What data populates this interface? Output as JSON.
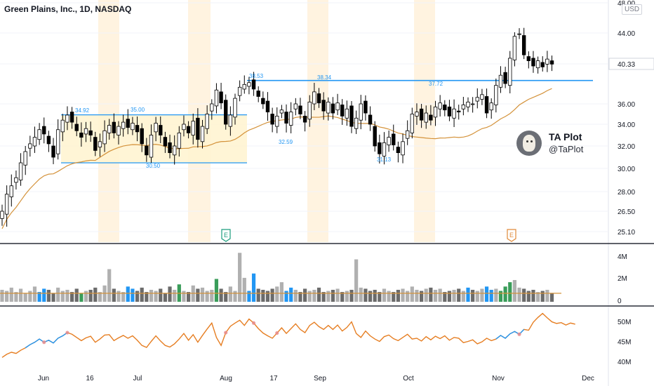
{
  "chart_data": {
    "type": "candlestick",
    "title": "Green Plains, Inc., 1D, NASDAQ",
    "currency": "USD",
    "y_ticks": [
      "48.00",
      "44.00",
      "40.33",
      "36.00",
      "34.00",
      "32.00",
      "30.00",
      "28.00",
      "26.50",
      "25.10"
    ],
    "y_tick_values": [
      48,
      44,
      40.33,
      36,
      34,
      32,
      30,
      28,
      26.5,
      25.1
    ],
    "last_price": "40.33",
    "x_ticks": [
      "Jun",
      "16",
      "Jul",
      "Aug",
      "17",
      "Sep",
      "Oct",
      "Nov",
      "Dec"
    ],
    "candles_close": [
      26.5,
      27.8,
      28.5,
      29.2,
      30.5,
      31.5,
      32.2,
      32.8,
      33.5,
      33.1,
      32.2,
      31.0,
      33.5,
      34.4,
      34.9,
      34.2,
      33.4,
      32.8,
      33.6,
      33.0,
      31.6,
      32.4,
      33.4,
      33.9,
      33.2,
      33.8,
      34.2,
      33.7,
      34.1,
      33.3,
      32.2,
      31.2,
      33.0,
      34.1,
      33.0,
      32.0,
      31.4,
      32.0,
      33.2,
      34.0,
      33.2,
      34.3,
      32.6,
      33.8,
      35.0,
      36.0,
      37.5,
      36.1,
      34.0,
      34.9,
      36.6,
      37.8,
      38.1,
      38.3,
      37.6,
      36.8,
      36.0,
      35.2,
      34.0,
      34.8,
      35.4,
      34.1,
      35.2,
      36.0,
      35.0,
      34.2,
      36.2,
      37.3,
      36.1,
      35.3,
      36.2,
      35.1,
      36.1,
      34.8,
      35.5,
      33.8,
      34.6,
      36.0,
      35.1,
      34.0,
      32.0,
      31.3,
      32.3,
      32.8,
      32.1,
      31.4,
      32.4,
      33.4,
      35.0,
      35.2,
      34.4,
      35.1,
      34.4,
      35.7,
      36.1,
      35.4,
      34.8,
      35.5,
      35.2,
      35.9,
      36.2,
      36.0,
      36.7,
      37.0,
      35.1,
      36.1,
      38.0,
      39.1,
      38.2,
      41.0,
      43.6,
      43.9,
      41.4,
      40.7,
      40.1,
      40.7,
      40.0,
      40.9,
      40.3
    ],
    "volume_ticks": [
      "4M",
      "2M",
      "0"
    ],
    "volume_values": [
      1.1,
      1.0,
      1.3,
      0.9,
      1.2,
      0.8,
      1.0,
      1.4,
      0.9,
      1.2,
      1.1,
      0.8,
      1.3,
      1.0,
      1.1,
      0.9,
      1.2,
      0.8,
      1.0,
      1.1,
      1.3,
      0.9,
      1.5,
      3.0,
      1.2,
      1.0,
      0.9,
      1.4,
      1.2,
      1.0,
      1.3,
      0.9,
      1.1,
      1.0,
      1.2,
      0.8,
      1.4,
      1.1,
      1.6,
      1.0,
      0.9,
      1.5,
      1.2,
      1.3,
      1.0,
      1.1,
      2.1,
      1.2,
      0.9,
      1.4,
      1.0,
      4.5,
      2.2,
      1.0,
      2.6,
      1.2,
      1.1,
      1.0,
      1.2,
      1.4,
      1.8,
      1.0,
      1.3,
      1.1,
      0.9,
      1.2,
      1.0,
      1.1,
      1.3,
      0.9,
      1.0,
      1.1,
      1.2,
      0.9,
      1.0,
      1.1,
      3.9,
      1.3,
      1.2,
      1.0,
      1.1,
      0.9,
      1.2,
      1.0,
      0.9,
      1.1,
      1.2,
      1.0,
      1.4,
      1.1,
      1.0,
      1.2,
      1.3,
      1.1,
      1.2,
      0.9,
      1.0,
      1.1,
      1.2,
      1.0,
      1.3,
      1.1,
      1.0,
      1.2,
      1.4,
      1.1,
      1.2,
      1.0,
      1.4,
      1.8,
      2.0,
      1.3,
      1.2,
      1.0,
      1.1,
      0.9,
      1.0,
      1.1,
      0.8
    ],
    "volume_ma": 1.3,
    "rs_ticks": [
      "50M",
      "45M",
      "40M"
    ],
    "rs_tick_values": [
      50,
      45,
      40
    ],
    "rs_values": [
      41.0,
      41.8,
      42.3,
      42.0,
      42.8,
      43.4,
      44.2,
      44.8,
      45.6,
      44.8,
      45.3,
      44.6,
      45.8,
      46.4,
      47.2,
      46.8,
      46.0,
      45.2,
      45.9,
      46.3,
      44.8,
      45.6,
      46.6,
      46.7,
      45.2,
      45.9,
      46.5,
      45.8,
      46.4,
      45.3,
      44.0,
      43.5,
      45.0,
      46.4,
      45.1,
      44.0,
      43.6,
      44.4,
      45.6,
      47.0,
      45.3,
      46.7,
      44.8,
      46.5,
      48.1,
      49.6,
      46.0,
      44.0,
      47.2,
      48.8,
      49.6,
      50.3,
      49.0,
      50.6,
      49.6,
      48.2,
      47.1,
      46.4,
      45.8,
      47.1,
      48.4,
      47.0,
      48.2,
      49.4,
      48.0,
      47.2,
      49.0,
      49.8,
      48.7,
      48.0,
      49.0,
      48.0,
      49.1,
      47.6,
      48.5,
      49.9,
      47.0,
      46.0,
      47.6,
      46.4,
      45.6,
      45.0,
      46.2,
      46.6,
      45.7,
      45.2,
      46.0,
      46.8,
      45.6,
      45.8,
      45.1,
      46.2,
      45.4,
      46.3,
      45.7,
      46.4,
      45.3,
      46.0,
      45.8,
      44.7,
      45.0,
      45.4,
      44.4,
      44.9,
      45.8,
      45.2,
      45.6,
      46.5,
      45.8,
      46.9,
      47.5,
      46.8,
      48.0,
      47.8,
      49.8,
      51.0,
      52.0,
      50.9,
      49.9,
      49.5,
      49.7,
      49.1,
      49.6,
      49.3
    ],
    "annotations": {
      "range1_labels": [
        "34.92",
        "35.00",
        "30.50"
      ],
      "range1_top": 34.92,
      "range1_bottom": 30.5,
      "resistance_labels": [
        "38.53",
        "38.34",
        "37.72"
      ],
      "resistance_level": 38.53,
      "lows": [
        "32.59",
        "31.13"
      ],
      "earnings_marker": "E"
    },
    "colors": {
      "up": "#ffffff",
      "down": "#000000",
      "range_fill": "#fff4d1",
      "resistance": "#2196f3",
      "ma": "#d4923a",
      "rs_line": "#e67e22",
      "rs_highlight": "#2196f3",
      "volume_up": "#888888",
      "volume_blue": "#2196f3",
      "volume_green": "#3a9d5a",
      "stripes": "#fff3e0",
      "earnings": "#1c9d7d",
      "earnings2": "#e08a3a"
    }
  },
  "brand": {
    "name": "TA Plot",
    "handle": "@TaPlot"
  }
}
